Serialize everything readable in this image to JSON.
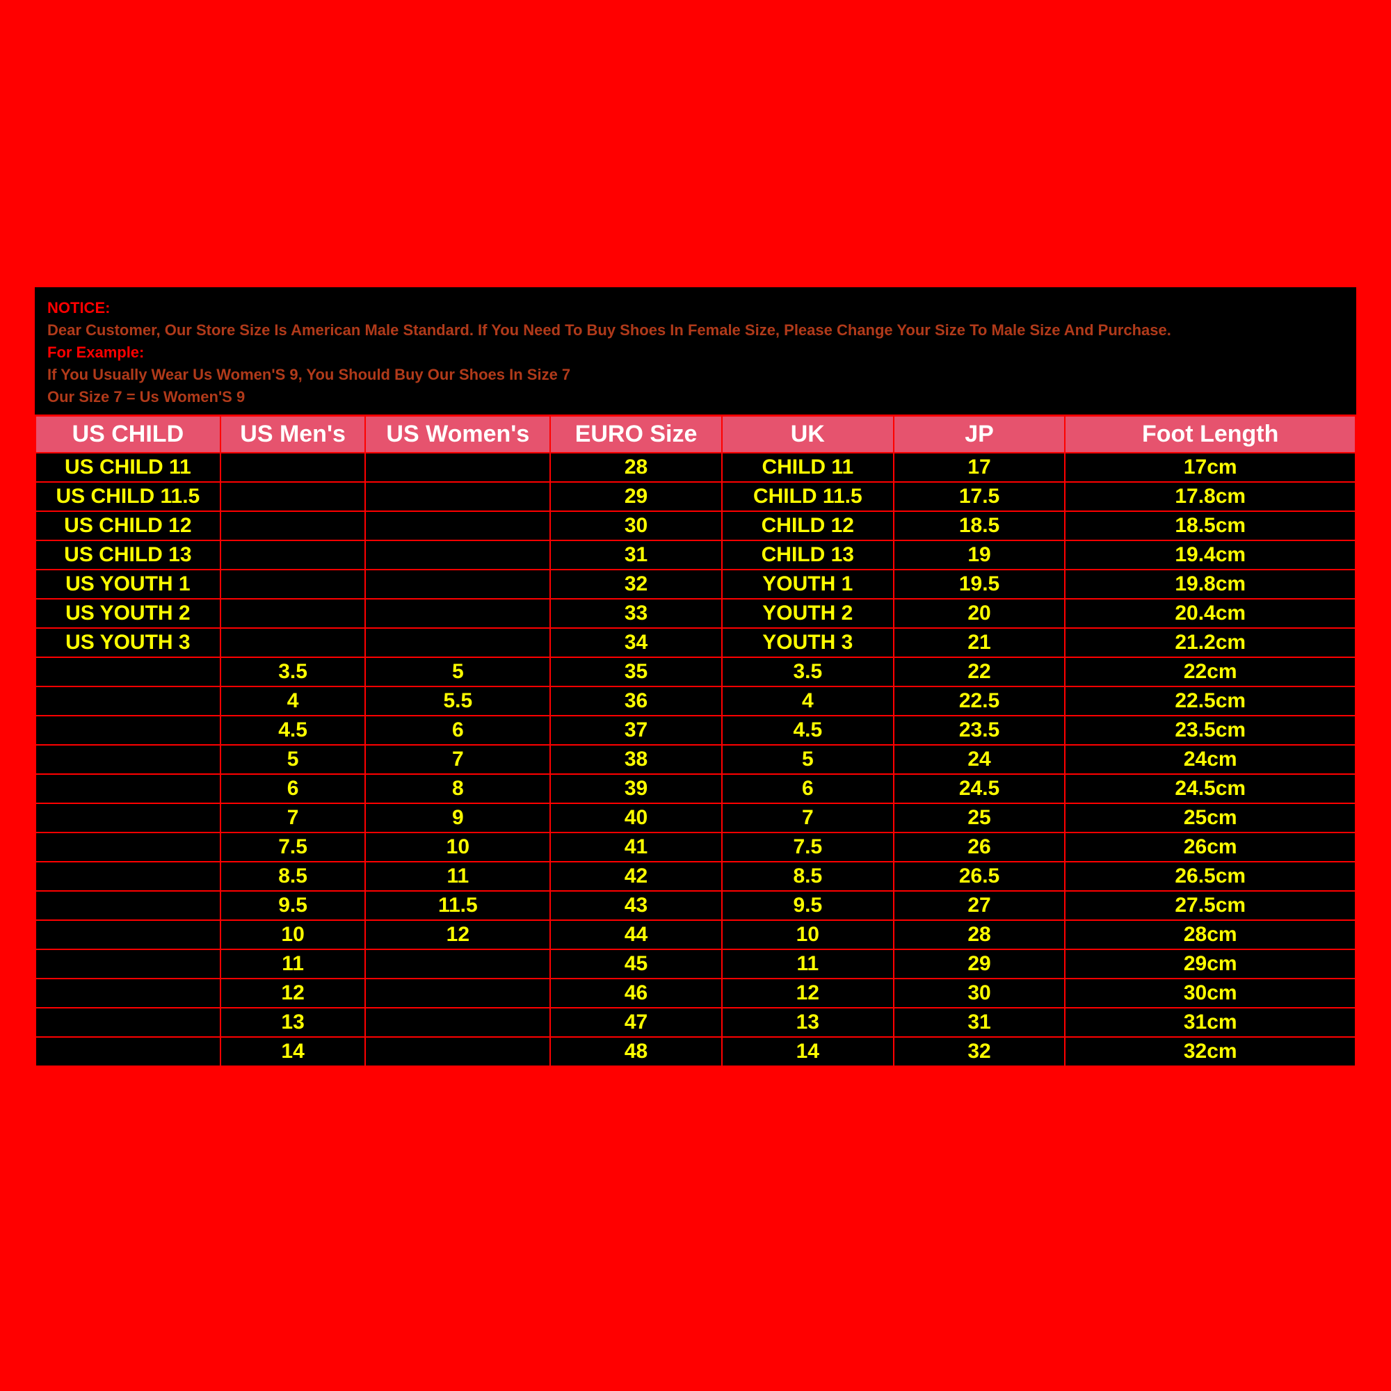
{
  "notice": {
    "line1_label": "NOTICE:",
    "line2": "Dear Customer, Our Store Size Is American Male Standard. If You Need To Buy Shoes In Female Size, Please Change Your Size To Male Size And Purchase.",
    "line3_label": "For Example:",
    "line4": "If You Usually Wear Us Women'S 9, You Should Buy Our Shoes In Size 7",
    "line5": "Our Size 7 = Us Women'S 9"
  },
  "table": {
    "type": "table",
    "background_color": "#000000",
    "border_color": "#ff0000",
    "header_bg": "#e6536e",
    "header_text_color": "#ffffff",
    "cell_text_color": "#ffff00",
    "header_fontsize": 34,
    "cell_fontsize": 30,
    "columns": [
      "US CHILD",
      "US Men's",
      "US Women's",
      "EURO Size",
      "UK",
      "JP",
      "Foot Length"
    ],
    "col_widths_pct": [
      14,
      11,
      14,
      13,
      13,
      13,
      22
    ],
    "rows": [
      [
        "US CHILD 11",
        "",
        "",
        "28",
        "CHILD 11",
        "17",
        "17cm"
      ],
      [
        "US CHILD 11.5",
        "",
        "",
        "29",
        "CHILD 11.5",
        "17.5",
        "17.8cm"
      ],
      [
        "US CHILD 12",
        "",
        "",
        "30",
        "CHILD 12",
        "18.5",
        "18.5cm"
      ],
      [
        "US CHILD 13",
        "",
        "",
        "31",
        "CHILD 13",
        "19",
        "19.4cm"
      ],
      [
        "US YOUTH 1",
        "",
        "",
        "32",
        "YOUTH 1",
        "19.5",
        "19.8cm"
      ],
      [
        "US YOUTH 2",
        "",
        "",
        "33",
        "YOUTH 2",
        "20",
        "20.4cm"
      ],
      [
        "US YOUTH 3",
        "",
        "",
        "34",
        "YOUTH 3",
        "21",
        "21.2cm"
      ],
      [
        "",
        "3.5",
        "5",
        "35",
        "3.5",
        "22",
        "22cm"
      ],
      [
        "",
        "4",
        "5.5",
        "36",
        "4",
        "22.5",
        "22.5cm"
      ],
      [
        "",
        "4.5",
        "6",
        "37",
        "4.5",
        "23.5",
        "23.5cm"
      ],
      [
        "",
        "5",
        "7",
        "38",
        "5",
        "24",
        "24cm"
      ],
      [
        "",
        "6",
        "8",
        "39",
        "6",
        "24.5",
        "24.5cm"
      ],
      [
        "",
        "7",
        "9",
        "40",
        "7",
        "25",
        "25cm"
      ],
      [
        "",
        "7.5",
        "10",
        "41",
        "7.5",
        "26",
        "26cm"
      ],
      [
        "",
        "8.5",
        "11",
        "42",
        "8.5",
        "26.5",
        "26.5cm"
      ],
      [
        "",
        "9.5",
        "11.5",
        "43",
        "9.5",
        "27",
        "27.5cm"
      ],
      [
        "",
        "10",
        "12",
        "44",
        "10",
        "28",
        "28cm"
      ],
      [
        "",
        "11",
        "",
        "45",
        "11",
        "29",
        "29cm"
      ],
      [
        "",
        "12",
        "",
        "46",
        "12",
        "30",
        "30cm"
      ],
      [
        "",
        "13",
        "",
        "47",
        "13",
        "31",
        "31cm"
      ],
      [
        "",
        "14",
        "",
        "48",
        "14",
        "32",
        "32cm"
      ]
    ]
  }
}
